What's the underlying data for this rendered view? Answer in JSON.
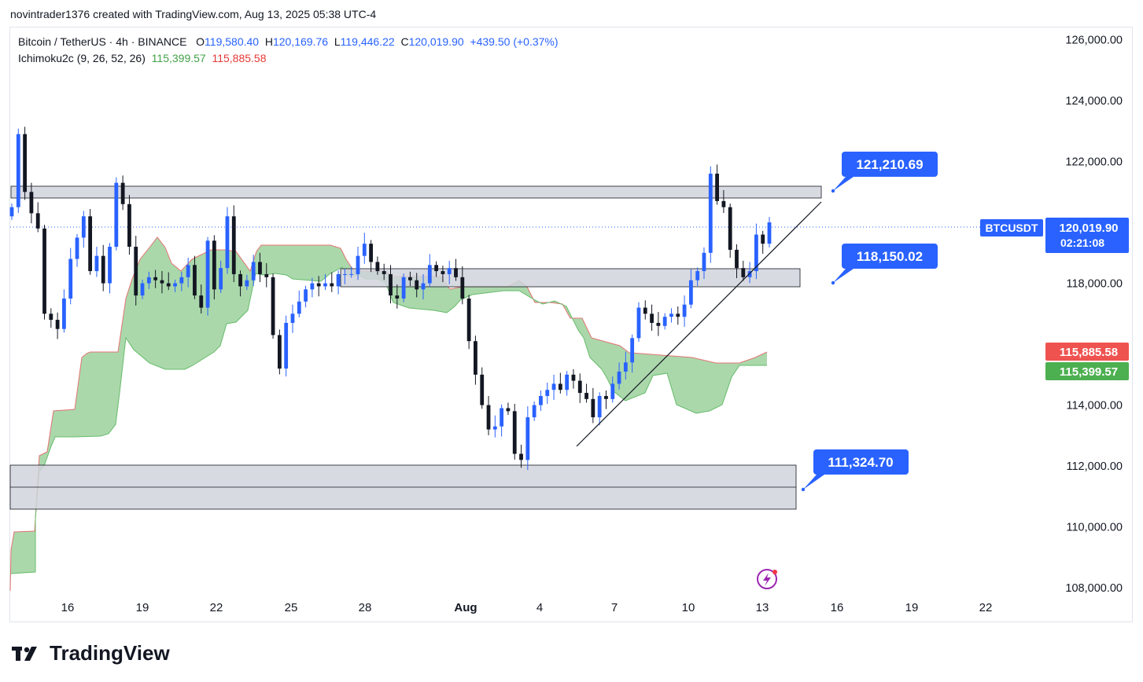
{
  "header": {
    "created_text": "novintrader1376 created with TradingView.com, Aug 13, 2025 05:38 UTC-4"
  },
  "legend": {
    "symbol": "Bitcoin / TetherUS · 4h · BINANCE",
    "o_label": "O",
    "o_value": "119,580.40",
    "h_label": "H",
    "h_value": "120,169.76",
    "l_label": "L",
    "l_value": "119,446.22",
    "c_label": "C",
    "c_value": "120,019.90",
    "change": "+439.50 (+0.37%)",
    "indicator": "Ichimoku2c (9, 26, 52, 26)",
    "ind_value_1": "115,399.57",
    "ind_value_2": "115,885.58"
  },
  "price_tag": {
    "ticker": "BTCUSDT",
    "price": "120,019.90",
    "countdown": "02:21:08"
  },
  "cloud_tags": {
    "upper": "115,885.58",
    "lower": "115,399.57"
  },
  "callouts": {
    "top": "121,210.69",
    "mid": "118,150.02",
    "bottom": "111,324.70"
  },
  "brand": {
    "name": "TradingView"
  },
  "colors": {
    "up": "#2962ff",
    "down": "#131722",
    "cloud_fill": "#a5d6a7",
    "cloud_edge": "#e57373",
    "callout": "#2962ff",
    "tag_red": "#ef5350",
    "tag_green": "#4caf50"
  },
  "chart_data": {
    "type": "candlestick",
    "y_ticks": [
      "126,000.00",
      "124,000.00",
      "122,000.00",
      "118,000.00",
      "114,000.00",
      "112,000.00",
      "110,000.00",
      "108,000.00"
    ],
    "y_tick_values": [
      126000,
      124000,
      122000,
      118000,
      114000,
      112000,
      110000,
      108000
    ],
    "ylim": [
      107900,
      126400
    ],
    "x_ticks": [
      "16",
      "19",
      "22",
      "25",
      "28",
      "Aug",
      "4",
      "7",
      "10",
      "13",
      "16",
      "19",
      "22"
    ],
    "zones": [
      {
        "low": 121100,
        "high": 121300
      },
      {
        "low": 118000,
        "high": 118300
      },
      {
        "low": 110700,
        "high": 112050
      }
    ],
    "zone_mid_line": 111324.7,
    "last_price": 120019.9,
    "trendline": {
      "from": [
        112650
      ],
      "to": [
        119400
      ]
    },
    "closes": [
      120500,
      122900,
      121000,
      120300,
      119800,
      117000,
      116800,
      116500,
      117500,
      118800,
      119500,
      120200,
      118400,
      118900,
      118000,
      119200,
      121300,
      120600,
      119200,
      117600,
      118000,
      118200,
      118100,
      118000,
      117900,
      118000,
      118200,
      118600,
      117600,
      117200,
      119400,
      117800,
      118500,
      120200,
      118300,
      117900,
      118100,
      118700,
      118300,
      118200,
      116300,
      115200,
      116700,
      117000,
      117400,
      117800,
      118000,
      117900,
      118000,
      117900,
      118300,
      118300,
      118300,
      118900,
      119300,
      118700,
      118400,
      118300,
      117600,
      117500,
      118200,
      118100,
      117800,
      118000,
      118600,
      118400,
      118300,
      118500,
      118200,
      117500,
      116100,
      115000,
      114000,
      113200,
      113300,
      113900,
      113800,
      112400,
      112200,
      113600,
      114000,
      114300,
      114500,
      114700,
      114500,
      115000,
      114800,
      114400,
      114200,
      113600,
      114300,
      114200,
      114700,
      115100,
      115400,
      116200,
      117200,
      117000,
      116700,
      116600,
      116900,
      117000,
      116900,
      117300,
      118100,
      118400,
      119000,
      121600,
      120700,
      120500,
      119100,
      118500,
      118200,
      118400,
      119600,
      119300,
      120000
    ]
  }
}
